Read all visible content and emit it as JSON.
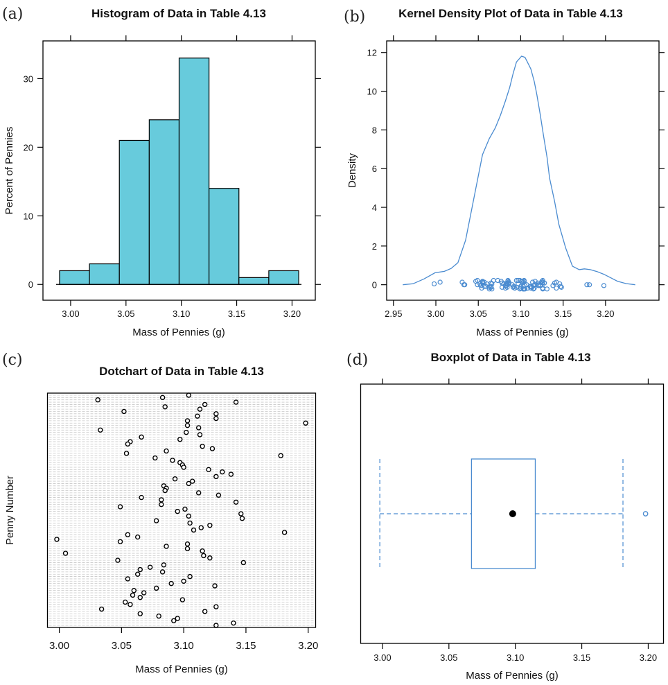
{
  "figure": {
    "panel_letters": [
      "(a)",
      "(b)",
      "(c)",
      "(d)"
    ]
  },
  "chart_data": [
    {
      "id": "a",
      "type": "bar",
      "subtype": "histogram",
      "title": "Histogram of Data in Table 4.13",
      "xlabel": "Mass of Pennies (g)",
      "ylabel": "Percent of Pennies",
      "bin_edges": [
        2.99,
        3.017,
        3.044,
        3.071,
        3.098,
        3.125,
        3.152,
        3.179,
        3.206
      ],
      "values": [
        2,
        3,
        21,
        24,
        33,
        14,
        1,
        2
      ],
      "xlim": [
        2.975,
        3.221
      ],
      "ylim": [
        -2.3,
        35.5
      ],
      "xticks": [
        "3.00",
        "3.05",
        "3.10",
        "3.15",
        "3.20"
      ],
      "yticks": [
        "0",
        "10",
        "20",
        "30"
      ],
      "fill_color": "#67cbdc",
      "grid": false
    },
    {
      "id": "b",
      "type": "line",
      "subtype": "kernel density with rug",
      "title": "Kernel Density Plot of Data in Table 4.13",
      "xlabel": "Mass of Pennies (g)",
      "ylabel": "Density",
      "xlim": [
        2.942,
        3.263
      ],
      "ylim": [
        -0.8,
        12.6
      ],
      "xticks": [
        "2.95",
        "3.00",
        "3.05",
        "3.10",
        "3.15",
        "3.20"
      ],
      "yticks": [
        "0",
        "2",
        "4",
        "6",
        "8",
        "10",
        "12"
      ],
      "line_color": "#4a8bd0",
      "curve": {
        "x": [
          2.961,
          2.973,
          2.986,
          2.999,
          3.01,
          3.018,
          3.026,
          3.035,
          3.042,
          3.049,
          3.055,
          3.063,
          3.07,
          3.076,
          3.082,
          3.087,
          3.091,
          3.095,
          3.101,
          3.105,
          3.108,
          3.112,
          3.116,
          3.119,
          3.123,
          3.127,
          3.131,
          3.134,
          3.14,
          3.145,
          3.153,
          3.161,
          3.169,
          3.175,
          3.182,
          3.19,
          3.198,
          3.206,
          3.214,
          3.224,
          3.235
        ],
        "y": [
          0.0,
          0.05,
          0.3,
          0.62,
          0.69,
          0.84,
          1.14,
          2.3,
          3.84,
          5.4,
          6.72,
          7.55,
          8.1,
          8.75,
          9.5,
          10.19,
          10.9,
          11.51,
          11.81,
          11.75,
          11.5,
          11.15,
          10.5,
          9.83,
          8.8,
          7.67,
          6.6,
          5.51,
          4.3,
          3.12,
          1.9,
          0.96,
          0.78,
          0.82,
          0.78,
          0.68,
          0.54,
          0.36,
          0.18,
          0.06,
          0.0
        ]
      },
      "rug_note": "points jittered vertically around density 0; same 100 values as dotchart"
    },
    {
      "id": "c",
      "type": "scatter",
      "subtype": "dotchart",
      "title": "Dotchart of Data in Table 4.13",
      "xlabel": "Mass of Pennies (g)",
      "ylabel": "Penny Number",
      "xlim": [
        2.9905,
        3.206
      ],
      "xticks": [
        "3.00",
        "3.05",
        "3.10",
        "3.15",
        "3.20"
      ],
      "values": [
        3.104,
        3.083,
        3.031,
        3.142,
        3.117,
        3.085,
        3.113,
        3.052,
        3.126,
        3.111,
        3.126,
        3.103,
        3.198,
        3.103,
        3.112,
        3.033,
        3.102,
        3.113,
        3.066,
        3.097,
        3.057,
        3.055,
        3.115,
        3.123,
        3.086,
        3.054,
        3.178,
        3.077,
        3.091,
        3.097,
        3.099,
        3.1,
        3.12,
        3.131,
        3.138,
        3.126,
        3.093,
        3.107,
        3.104,
        3.084,
        3.086,
        3.085,
        3.112,
        3.128,
        3.066,
        3.082,
        3.142,
        3.082,
        3.049,
        3.101,
        3.095,
        3.146,
        3.104,
        3.147,
        3.078,
        3.105,
        3.121,
        3.114,
        3.108,
        3.181,
        3.055,
        3.063,
        2.998,
        3.049,
        3.103,
        3.086,
        3.103,
        3.115,
        3.005,
        3.116,
        3.121,
        3.047,
        3.148,
        3.084,
        3.073,
        3.065,
        3.083,
        3.063,
        3.105,
        3.055,
        3.1,
        3.09,
        3.125,
        3.078,
        3.06,
        3.068,
        3.059,
        3.065,
        3.099,
        3.053,
        3.057,
        3.126,
        3.034,
        3.117,
        3.065,
        3.08,
        3.095,
        3.092,
        3.14,
        3.126
      ],
      "grid": true
    },
    {
      "id": "d",
      "type": "box",
      "title": "Boxplot of Data in Table 4.13",
      "xlabel": "Mass of Pennies (g)",
      "ylabel": "",
      "xlim": [
        2.9836,
        3.2115
      ],
      "xticks": [
        "3.00",
        "3.05",
        "3.10",
        "3.15",
        "3.20"
      ],
      "whisker_low": 2.998,
      "q1": 3.067,
      "median": 3.098,
      "q3": 3.115,
      "whisker_high": 3.181,
      "outliers": [
        3.198
      ],
      "box_color": "#4a8bd0"
    }
  ]
}
